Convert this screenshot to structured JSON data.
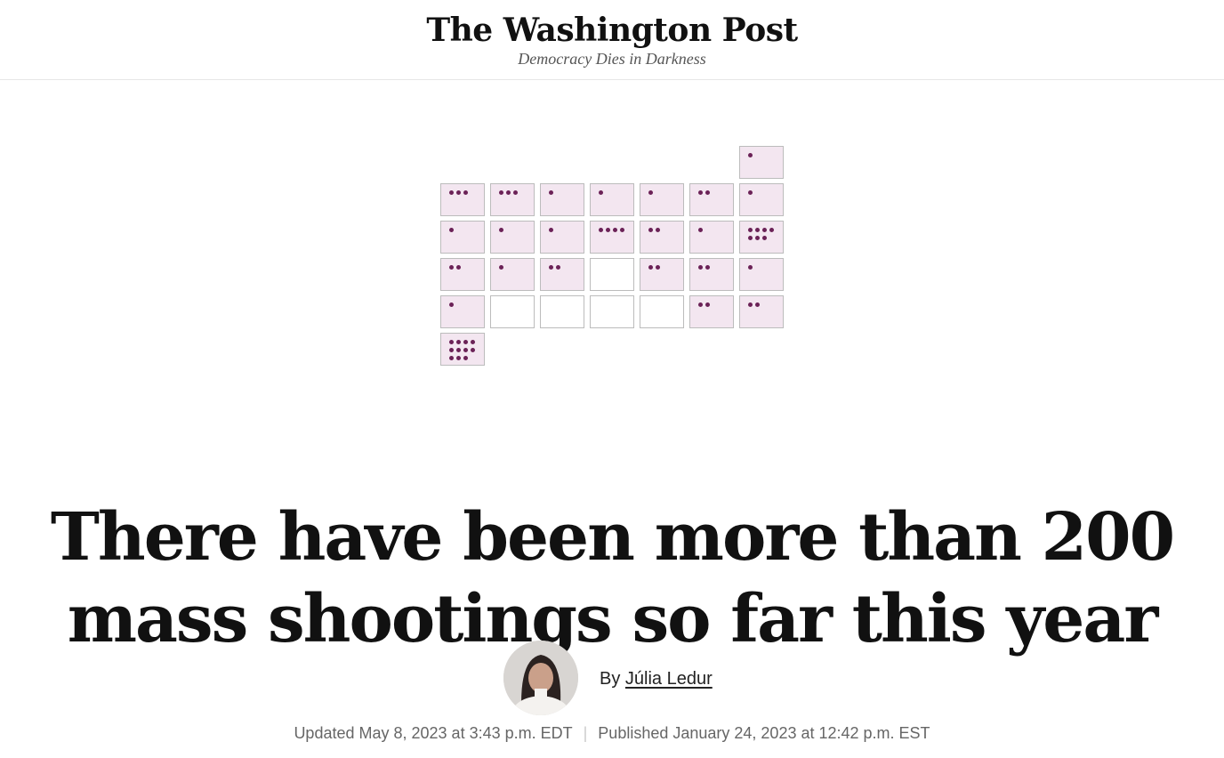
{
  "masthead": {
    "logo": "The Washington Post",
    "tagline": "Democracy Dies in Darkness"
  },
  "calendar": {
    "cells": [
      {
        "dots": 1,
        "filled": true
      },
      {
        "dots": 3,
        "filled": true
      },
      {
        "dots": 3,
        "filled": true
      },
      {
        "dots": 1,
        "filled": true
      },
      {
        "dots": 1,
        "filled": true
      },
      {
        "dots": 1,
        "filled": true
      },
      {
        "dots": 2,
        "filled": true
      },
      {
        "dots": 1,
        "filled": true
      },
      {
        "dots": 1,
        "filled": true
      },
      {
        "dots": 1,
        "filled": true
      },
      {
        "dots": 1,
        "filled": true
      },
      {
        "dots": 4,
        "filled": true
      },
      {
        "dots": 2,
        "filled": true
      },
      {
        "dots": 1,
        "filled": true
      },
      {
        "dots": 7,
        "filled": true
      },
      {
        "dots": 2,
        "filled": true
      },
      {
        "dots": 1,
        "filled": true
      },
      {
        "dots": 2,
        "filled": true
      },
      {
        "dots": 0,
        "filled": false
      },
      {
        "dots": 2,
        "filled": true
      },
      {
        "dots": 2,
        "filled": true
      },
      {
        "dots": 1,
        "filled": true
      },
      {
        "dots": 1,
        "filled": true
      },
      {
        "dots": 0,
        "filled": false
      },
      {
        "dots": 0,
        "filled": false
      },
      {
        "dots": 0,
        "filled": false
      },
      {
        "dots": 0,
        "filled": false
      },
      {
        "dots": 2,
        "filled": true
      },
      {
        "dots": 2,
        "filled": true
      },
      {
        "dots": 11,
        "filled": true
      }
    ],
    "colors": {
      "dot": "#6b2257",
      "filled_cell": "#f3e6f0",
      "border": "#bcbcbc"
    }
  },
  "article": {
    "headline": "There have been more than 200 mass shootings so far this year",
    "byline_prefix": "By",
    "author": "Júlia Ledur",
    "updated": "Updated May 8, 2023 at 3:43 p.m. EDT",
    "separator": "|",
    "published": "Published January 24, 2023 at 12:42 p.m. EST"
  }
}
